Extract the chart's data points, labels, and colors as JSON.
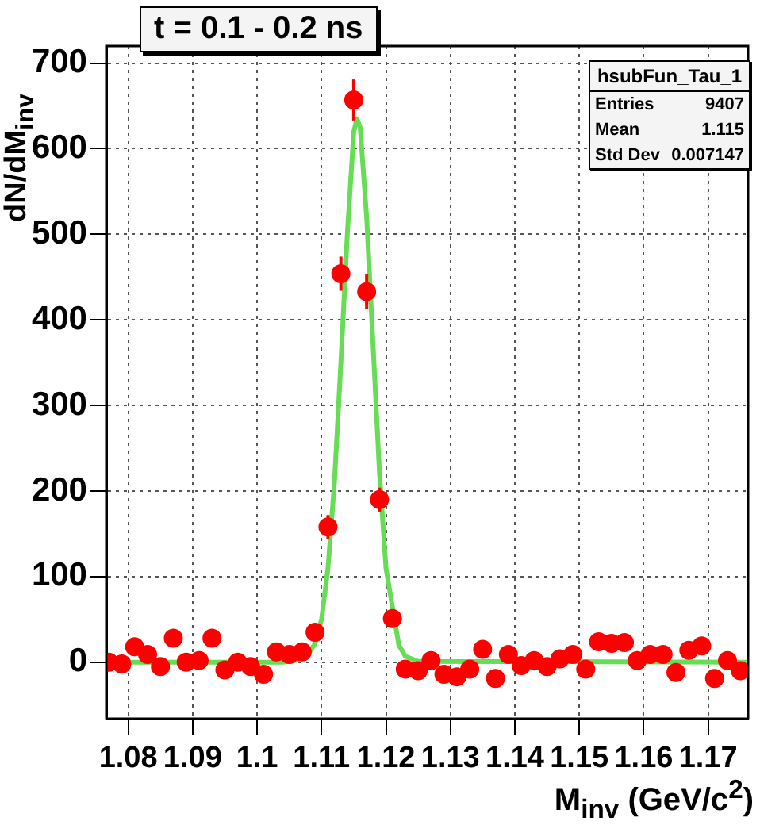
{
  "chart_data": {
    "type": "scatter",
    "title": "t = 0.1 - 0.2 ns",
    "xlabel": "M$_{inv}$ (GeV/c$^{2}$)",
    "ylabel": "dN/dM$_{inv}$",
    "annotations": [
      "hsubFun_Tau_1",
      "Entries",
      "9407",
      "Mean",
      "1.115",
      "Std Dev",
      "0.007147"
    ],
    "xlim": [
      1.0766,
      1.1762
    ],
    "xticks": [
      1.08,
      1.09,
      1.1,
      1.11,
      1.12,
      1.13,
      1.14,
      1.15,
      1.16,
      1.17
    ],
    "ylim": [
      -66,
      720
    ],
    "yticks": [
      0,
      100,
      200,
      300,
      400,
      500,
      600,
      700
    ],
    "grid": true,
    "legend": false,
    "marker": "circle",
    "series": [
      {
        "color": "#ff0000",
        "x": [
          1.077,
          1.079,
          1.081,
          1.083,
          1.085,
          1.087,
          1.089,
          1.091,
          1.093,
          1.095,
          1.097,
          1.099,
          1.101,
          1.103,
          1.105,
          1.107,
          1.109,
          1.111,
          1.113,
          1.115,
          1.117,
          1.119,
          1.121,
          1.123,
          1.125,
          1.127,
          1.129,
          1.131,
          1.133,
          1.135,
          1.137,
          1.139,
          1.141,
          1.143,
          1.145,
          1.147,
          1.149,
          1.151,
          1.153,
          1.155,
          1.157,
          1.159,
          1.161,
          1.163,
          1.165,
          1.167,
          1.169,
          1.171,
          1.173,
          1.175
        ],
        "values": [
          0,
          -2,
          18,
          9,
          -5,
          28,
          0,
          2,
          28,
          -9,
          0,
          -5,
          -14,
          12,
          9,
          12,
          35,
          158,
          454,
          657,
          433,
          190,
          51,
          -8,
          -10,
          2,
          -14,
          -17,
          -8,
          15,
          -19,
          9,
          -4,
          2,
          -5,
          4,
          9,
          -8,
          24,
          22,
          23,
          2,
          9,
          9,
          -12,
          14,
          19,
          -19,
          2,
          -10
        ],
        "errors": [
          8,
          8,
          8,
          8,
          8,
          8,
          8,
          8,
          8,
          8,
          8,
          8,
          8,
          8,
          8,
          8,
          10,
          14,
          20,
          24,
          20,
          14,
          10,
          8,
          8,
          8,
          8,
          8,
          8,
          8,
          8,
          8,
          8,
          8,
          8,
          8,
          8,
          8,
          8,
          8,
          8,
          8,
          8,
          8,
          8,
          8,
          8,
          8,
          8,
          8
        ]
      },
      {
        "type": "line",
        "color": "#66dd55",
        "marker": "none",
        "x": [
          1.0766,
          1.104,
          1.106,
          1.108,
          1.109,
          1.11,
          1.111,
          1.112,
          1.113,
          1.114,
          1.115,
          1.1155,
          1.116,
          1.117,
          1.118,
          1.119,
          1.12,
          1.122,
          1.123,
          1.125,
          1.1762
        ],
        "values": [
          0,
          0,
          2,
          10,
          22,
          50,
          110,
          210,
          350,
          500,
          620,
          635,
          625,
          520,
          370,
          220,
          110,
          20,
          7,
          1,
          0
        ]
      }
    ]
  }
}
